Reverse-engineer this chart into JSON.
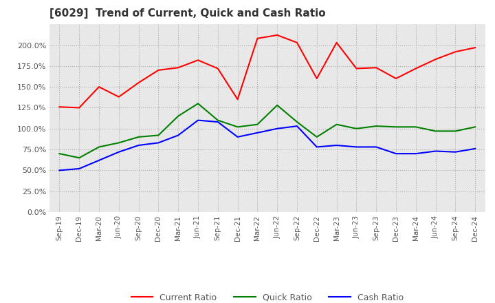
{
  "title": "[6029]  Trend of Current, Quick and Cash Ratio",
  "x_labels": [
    "Sep-19",
    "Dec-19",
    "Mar-20",
    "Jun-20",
    "Sep-20",
    "Dec-20",
    "Mar-21",
    "Jun-21",
    "Sep-21",
    "Dec-21",
    "Mar-22",
    "Jun-22",
    "Sep-22",
    "Dec-22",
    "Mar-23",
    "Jun-23",
    "Sep-23",
    "Dec-23",
    "Mar-24",
    "Jun-24",
    "Sep-24",
    "Dec-24"
  ],
  "current_ratio": [
    1.26,
    1.25,
    1.5,
    1.38,
    1.55,
    1.7,
    1.73,
    1.82,
    1.72,
    1.35,
    2.08,
    2.12,
    2.03,
    1.6,
    2.03,
    1.72,
    1.73,
    1.6,
    1.72,
    1.83,
    1.92,
    1.97
  ],
  "quick_ratio": [
    0.7,
    0.65,
    0.78,
    0.83,
    0.9,
    0.92,
    1.15,
    1.3,
    1.1,
    1.02,
    1.05,
    1.28,
    1.08,
    0.9,
    1.05,
    1.0,
    1.03,
    1.02,
    1.02,
    0.97,
    0.97,
    1.02
  ],
  "cash_ratio": [
    0.5,
    0.52,
    0.62,
    0.72,
    0.8,
    0.83,
    0.92,
    1.1,
    1.08,
    0.9,
    0.95,
    1.0,
    1.03,
    0.78,
    0.8,
    0.78,
    0.78,
    0.7,
    0.7,
    0.73,
    0.72,
    0.76
  ],
  "current_color": "#ff0000",
  "quick_color": "#008000",
  "cash_color": "#0000ff",
  "bg_color": "#ffffff",
  "plot_bg_color": "#e8e8e8",
  "grid_color": "#aaaaaa",
  "ylim": [
    0.0,
    2.25
  ],
  "yticks": [
    0.0,
    0.25,
    0.5,
    0.75,
    1.0,
    1.25,
    1.5,
    1.75,
    2.0
  ],
  "line_width": 1.5
}
